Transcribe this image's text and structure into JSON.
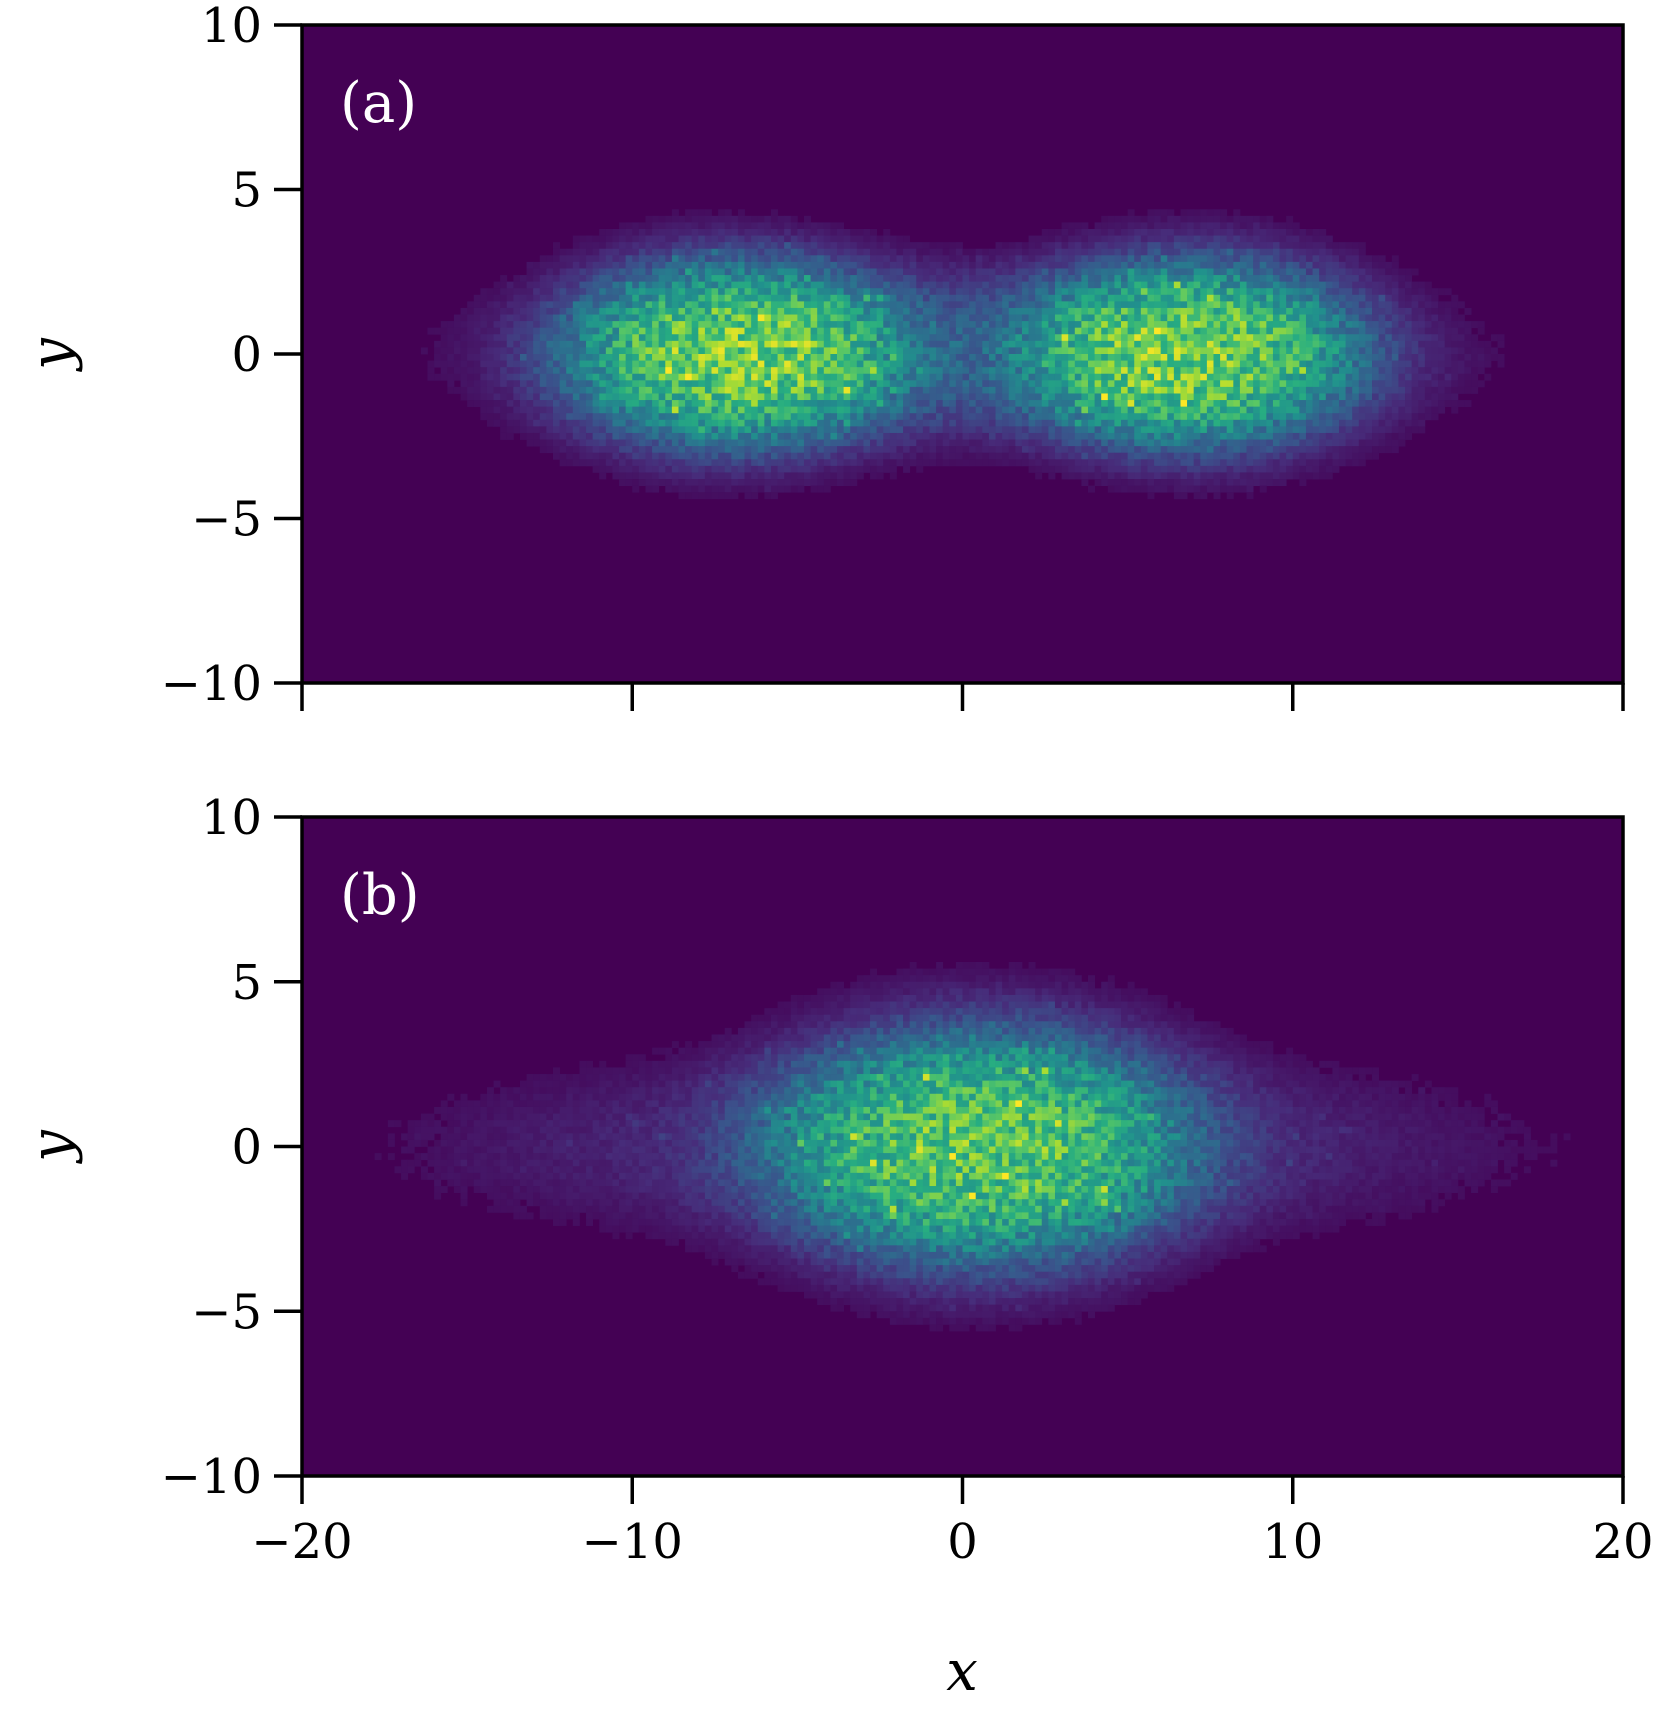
{
  "chart_data": [
    {
      "type": "heatmap",
      "panel_label": "(a)",
      "xlabel": "",
      "ylabel": "y",
      "xlim": [
        -20,
        20
      ],
      "ylim": [
        -10,
        10
      ],
      "xticks": [
        -20,
        -10,
        0,
        10,
        20
      ],
      "yticks": [
        -10,
        -5,
        0,
        5,
        10
      ],
      "x_tick_labels": [
        "",
        "",
        "",
        "",
        ""
      ],
      "y_tick_labels": [
        "−10",
        "−5",
        "0",
        "5",
        "10"
      ],
      "colormap": "viridis",
      "background_color": "#440154",
      "grid": false,
      "density_clusters": [
        {
          "cx": -7,
          "cy": 0,
          "sx": 4.5,
          "sy": 2.6,
          "weight": 1.0
        },
        {
          "cx": 7,
          "cy": 0,
          "sx": 4.5,
          "sy": 2.6,
          "weight": 1.0
        },
        {
          "cx": 0,
          "cy": 0,
          "sx": 11,
          "sy": 2.2,
          "weight": 0.35
        }
      ]
    },
    {
      "type": "heatmap",
      "panel_label": "(b)",
      "xlabel": "x",
      "ylabel": "y",
      "xlim": [
        -20,
        20
      ],
      "ylim": [
        -10,
        10
      ],
      "xticks": [
        -20,
        -10,
        0,
        10,
        20
      ],
      "yticks": [
        -10,
        -5,
        0,
        5,
        10
      ],
      "x_tick_labels": [
        "−20",
        "−10",
        "0",
        "10",
        "20"
      ],
      "y_tick_labels": [
        "−10",
        "−5",
        "0",
        "5",
        "10"
      ],
      "colormap": "viridis",
      "background_color": "#440154",
      "grid": false,
      "density_clusters": [
        {
          "cx": 0.5,
          "cy": 0,
          "sx": 5.5,
          "sy": 3.3,
          "weight": 1.0
        },
        {
          "cx": 0,
          "cy": 0,
          "sx": 13,
          "sy": 2.4,
          "weight": 0.22
        }
      ]
    }
  ]
}
